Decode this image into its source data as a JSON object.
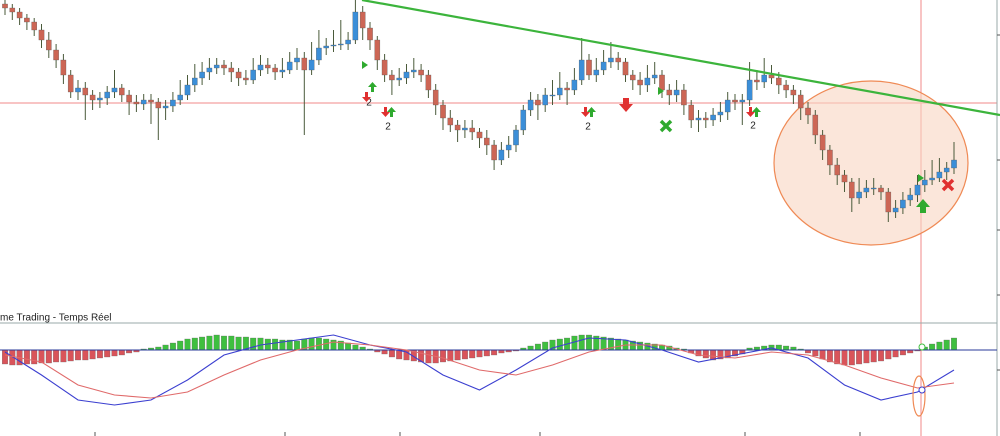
{
  "chart_data": [
    {
      "type": "candlestick",
      "ylim": [
        0,
        320
      ],
      "up_color": "#3b8ed8",
      "down_color": "#cc6655",
      "wick_color": "#4a5a3a",
      "annotations": [
        "2",
        "2",
        "2",
        "2"
      ],
      "candles": [
        [
          316,
          320,
          305,
          312
        ],
        [
          312,
          316,
          300,
          308
        ],
        [
          308,
          312,
          295,
          302
        ],
        [
          302,
          306,
          290,
          298
        ],
        [
          298,
          302,
          284,
          290
        ],
        [
          290,
          296,
          272,
          280
        ],
        [
          280,
          288,
          262,
          270
        ],
        [
          270,
          276,
          252,
          260
        ],
        [
          260,
          266,
          236,
          245
        ],
        [
          245,
          250,
          222,
          228
        ],
        [
          228,
          240,
          220,
          232
        ],
        [
          232,
          238,
          200,
          225
        ],
        [
          225,
          230,
          210,
          220
        ],
        [
          220,
          228,
          212,
          222
        ],
        [
          222,
          234,
          215,
          228
        ],
        [
          228,
          250,
          222,
          232
        ],
        [
          232,
          236,
          218,
          225
        ],
        [
          225,
          230,
          205,
          218
        ],
        [
          218,
          225,
          208,
          216
        ],
        [
          216,
          226,
          210,
          220
        ],
        [
          220,
          226,
          196,
          218
        ],
        [
          218,
          222,
          180,
          212
        ],
        [
          212,
          220,
          200,
          214
        ],
        [
          214,
          228,
          208,
          220
        ],
        [
          220,
          240,
          215,
          225
        ],
        [
          225,
          245,
          220,
          235
        ],
        [
          235,
          256,
          228,
          242
        ],
        [
          242,
          258,
          235,
          248
        ],
        [
          248,
          262,
          240,
          252
        ],
        [
          252,
          262,
          246,
          255
        ],
        [
          255,
          260,
          245,
          252
        ],
        [
          252,
          258,
          238,
          248
        ],
        [
          248,
          252,
          234,
          242
        ],
        [
          242,
          250,
          235,
          240
        ],
        [
          240,
          262,
          236,
          250
        ],
        [
          250,
          265,
          244,
          255
        ],
        [
          255,
          262,
          246,
          252
        ],
        [
          252,
          256,
          240,
          248
        ],
        [
          248,
          262,
          242,
          250
        ],
        [
          250,
          268,
          246,
          258
        ],
        [
          258,
          272,
          250,
          262
        ],
        [
          262,
          268,
          185,
          250
        ],
        [
          250,
          278,
          245,
          260
        ],
        [
          260,
          290,
          255,
          272
        ],
        [
          272,
          282,
          265,
          274
        ],
        [
          274,
          290,
          268,
          275
        ],
        [
          275,
          300,
          270,
          276
        ],
        [
          276,
          288,
          270,
          280
        ],
        [
          280,
          320,
          276,
          308
        ],
        [
          308,
          314,
          280,
          292
        ],
        [
          292,
          298,
          270,
          280
        ],
        [
          280,
          284,
          250,
          260
        ],
        [
          260,
          266,
          238,
          245
        ],
        [
          245,
          250,
          225,
          240
        ],
        [
          240,
          252,
          234,
          242
        ],
        [
          242,
          256,
          236,
          248
        ],
        [
          248,
          262,
          242,
          250
        ],
        [
          250,
          256,
          238,
          245
        ],
        [
          245,
          250,
          222,
          230
        ],
        [
          230,
          236,
          205,
          215
        ],
        [
          215,
          220,
          190,
          202
        ],
        [
          202,
          210,
          188,
          195
        ],
        [
          195,
          200,
          178,
          190
        ],
        [
          190,
          200,
          182,
          192
        ],
        [
          192,
          200,
          180,
          188
        ],
        [
          188,
          192,
          172,
          182
        ],
        [
          182,
          190,
          165,
          175
        ],
        [
          175,
          180,
          150,
          160
        ],
        [
          160,
          178,
          155,
          170
        ],
        [
          170,
          184,
          162,
          175
        ],
        [
          175,
          195,
          168,
          190
        ],
        [
          190,
          215,
          185,
          210
        ],
        [
          210,
          228,
          204,
          220
        ],
        [
          220,
          226,
          200,
          215
        ],
        [
          215,
          232,
          208,
          225
        ],
        [
          225,
          240,
          215,
          225
        ],
        [
          225,
          248,
          220,
          232
        ],
        [
          232,
          238,
          215,
          230
        ],
        [
          230,
          252,
          225,
          240
        ],
        [
          240,
          282,
          235,
          260
        ],
        [
          260,
          266,
          240,
          245
        ],
        [
          245,
          262,
          238,
          250
        ],
        [
          250,
          270,
          245,
          258
        ],
        [
          258,
          278,
          252,
          262
        ],
        [
          262,
          268,
          250,
          258
        ],
        [
          258,
          262,
          238,
          245
        ],
        [
          245,
          250,
          230,
          240
        ],
        [
          240,
          248,
          225,
          235
        ],
        [
          235,
          255,
          228,
          242
        ],
        [
          242,
          258,
          236,
          245
        ],
        [
          245,
          250,
          222,
          230
        ],
        [
          230,
          236,
          215,
          225
        ],
        [
          225,
          240,
          218,
          230
        ],
        [
          230,
          236,
          205,
          215
        ],
        [
          215,
          220,
          192,
          200
        ],
        [
          200,
          210,
          188,
          202
        ],
        [
          202,
          208,
          192,
          200
        ],
        [
          200,
          212,
          194,
          205
        ],
        [
          205,
          218,
          198,
          208
        ],
        [
          208,
          228,
          200,
          220
        ],
        [
          220,
          226,
          210,
          218
        ],
        [
          218,
          226,
          195,
          220
        ],
        [
          220,
          258,
          214,
          240
        ],
        [
          240,
          250,
          230,
          238
        ],
        [
          238,
          262,
          232,
          245
        ],
        [
          245,
          255,
          236,
          242
        ],
        [
          242,
          248,
          226,
          235
        ],
        [
          235,
          240,
          222,
          230
        ],
        [
          230,
          235,
          216,
          225
        ],
        [
          225,
          230,
          200,
          212
        ],
        [
          212,
          218,
          196,
          205
        ],
        [
          205,
          210,
          176,
          185
        ],
        [
          185,
          190,
          160,
          170
        ],
        [
          170,
          175,
          145,
          155
        ],
        [
          155,
          162,
          135,
          145
        ],
        [
          145,
          150,
          128,
          138
        ],
        [
          138,
          142,
          108,
          122
        ],
        [
          122,
          142,
          116,
          128
        ],
        [
          128,
          140,
          122,
          132
        ],
        [
          132,
          142,
          125,
          132
        ],
        [
          132,
          135,
          120,
          128
        ],
        [
          128,
          132,
          98,
          108
        ],
        [
          108,
          120,
          102,
          112
        ],
        [
          112,
          128,
          106,
          120
        ],
        [
          120,
          132,
          114,
          125
        ],
        [
          125,
          145,
          118,
          135
        ],
        [
          135,
          150,
          128,
          140
        ],
        [
          140,
          160,
          135,
          142
        ],
        [
          142,
          162,
          138,
          148
        ],
        [
          148,
          158,
          140,
          152
        ],
        [
          152,
          178,
          146,
          160
        ]
      ]
    },
    {
      "type": "macd",
      "title": "me Trading - Temps Réel",
      "ylim": [
        -86,
        25
      ],
      "pos_color": "#3fbf3f",
      "neg_color": "#d9545a",
      "zero_color": "#2a3a9a",
      "histogram": [
        -14,
        -15,
        -15,
        -14,
        -14,
        -13,
        -13,
        -12,
        -12,
        -11,
        -10,
        -10,
        -9,
        -8,
        -7,
        -6,
        -5,
        -3,
        -2,
        1,
        2,
        3,
        5,
        7,
        9,
        11,
        12,
        13,
        14,
        15,
        14,
        14,
        13,
        13,
        12,
        12,
        11,
        11,
        10,
        10,
        9,
        11,
        12,
        12,
        11,
        10,
        9,
        7,
        5,
        3,
        1,
        -2,
        -4,
        -7,
        -9,
        -10,
        -11,
        -12,
        -13,
        -13,
        -12,
        -11,
        -10,
        -9,
        -8,
        -7,
        -6,
        -5,
        -3,
        -2,
        -1,
        2,
        4,
        6,
        8,
        10,
        11,
        12,
        14,
        15,
        15,
        14,
        13,
        12,
        11,
        10,
        9,
        8,
        7,
        6,
        5,
        4,
        2,
        1,
        -3,
        -6,
        -8,
        -10,
        -9,
        -8,
        -6,
        -4,
        2,
        3,
        4,
        5,
        5,
        4,
        3,
        1,
        -3,
        -6,
        -9,
        -12,
        -14,
        -15,
        -15,
        -14,
        -13,
        -12,
        -11,
        -9,
        -7,
        -5,
        -3,
        -1,
        3,
        6,
        8,
        10,
        12
      ],
      "x": [
        0,
        5,
        10,
        15,
        20,
        25,
        30,
        35,
        40,
        45,
        50,
        55,
        60,
        65,
        70,
        75,
        80,
        85,
        90,
        95,
        100,
        105,
        110,
        115,
        120,
        125,
        130
      ],
      "series": [
        {
          "color": "#3b3fd0",
          "values": [
            -2,
            -25,
            -50,
            -55,
            -50,
            -30,
            -5,
            5,
            10,
            15,
            5,
            -2,
            -25,
            -40,
            -20,
            2,
            12,
            10,
            0,
            -12,
            -5,
            2,
            -8,
            -35,
            -50,
            -42,
            -20
          ]
        },
        {
          "color": "#e06a6a",
          "values": [
            -5,
            -12,
            -35,
            -45,
            -48,
            -42,
            -25,
            -10,
            0,
            8,
            5,
            0,
            -8,
            -20,
            -25,
            -15,
            -2,
            5,
            5,
            -5,
            -8,
            -2,
            -5,
            -15,
            -28,
            -38,
            -33
          ]
        }
      ]
    }
  ]
}
